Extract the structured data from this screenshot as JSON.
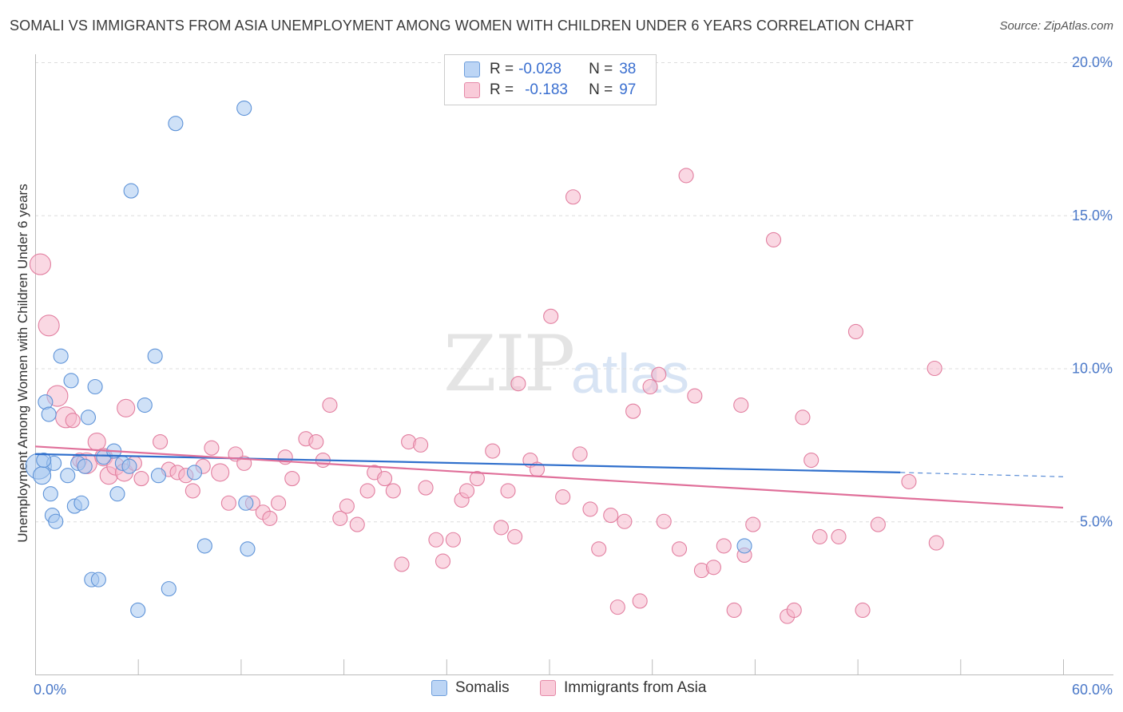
{
  "title": "SOMALI VS IMMIGRANTS FROM ASIA UNEMPLOYMENT AMONG WOMEN WITH CHILDREN UNDER 6 YEARS CORRELATION CHART",
  "source": "Source: ZipAtlas.com",
  "watermark": {
    "left": "ZIP",
    "right": "atlas"
  },
  "legend": {
    "rows": [
      {
        "r_label": "R =",
        "r_value": "-0.028",
        "n_label": "N =",
        "n_value": "38",
        "color": "#a8c8f0"
      },
      {
        "r_label": "R =",
        "r_value": "-0.183",
        "n_label": "N =",
        "n_value": "97",
        "color": "#f6b8cc"
      }
    ]
  },
  "bottom_legend": [
    "Somalis",
    "Immigrants from Asia"
  ],
  "colors": {
    "somali_fill": "#a8c8f0",
    "somali_stroke": "#5e93d8",
    "somali_line": "#2f6fcc",
    "asia_fill": "#f6b8cc",
    "asia_stroke": "#e27fa0",
    "asia_line": "#e0709a",
    "grid": "#dddddd",
    "tick_text": "#4a78c8"
  },
  "chart_data": {
    "type": "scatter",
    "title": "SOMALI VS IMMIGRANTS FROM ASIA UNEMPLOYMENT AMONG WOMEN WITH CHILDREN UNDER 6 YEARS CORRELATION CHART",
    "xlabel": "",
    "ylabel": "Unemployment Among Women with Children Under 6 years",
    "xlim": [
      0,
      60
    ],
    "ylim": [
      0,
      20
    ],
    "x_tick_labels": [
      "0.0%",
      "60.0%"
    ],
    "y_ticks": [
      5,
      10,
      15,
      20
    ],
    "y_tick_labels": [
      "5.0%",
      "10.0%",
      "15.0%",
      "20.0%"
    ],
    "grid": "horizontal dashed",
    "legend_position": "top-center",
    "series": [
      {
        "name": "Somalis",
        "r": -0.028,
        "n": 38,
        "trend": {
          "x": [
            0,
            50.5
          ],
          "y": [
            7.2,
            6.6
          ],
          "extended_to": [
            60,
            6.46
          ]
        },
        "points": [
          [
            0.2,
            6.8,
            16
          ],
          [
            0.4,
            6.5,
            11
          ],
          [
            0.6,
            8.9,
            9
          ],
          [
            0.8,
            8.5,
            9
          ],
          [
            0.9,
            5.9,
            9
          ],
          [
            1.0,
            5.2,
            9
          ],
          [
            1.1,
            6.9,
            9
          ],
          [
            1.2,
            5.0,
            9
          ],
          [
            1.5,
            10.4,
            9
          ],
          [
            1.9,
            6.5,
            9
          ],
          [
            2.1,
            9.6,
            9
          ],
          [
            2.3,
            5.5,
            9
          ],
          [
            2.5,
            6.9,
            9
          ],
          [
            2.7,
            5.6,
            9
          ],
          [
            2.9,
            6.8,
            9
          ],
          [
            3.1,
            8.4,
            9
          ],
          [
            3.5,
            9.4,
            9
          ],
          [
            3.3,
            3.1,
            9
          ],
          [
            3.7,
            3.1,
            9
          ],
          [
            4.0,
            7.1,
            9
          ],
          [
            4.6,
            7.3,
            9
          ],
          [
            4.8,
            5.9,
            9
          ],
          [
            5.1,
            6.9,
            9
          ],
          [
            5.5,
            6.8,
            9
          ],
          [
            5.6,
            15.8,
            9
          ],
          [
            6.0,
            2.1,
            9
          ],
          [
            6.4,
            8.8,
            9
          ],
          [
            7.0,
            10.4,
            9
          ],
          [
            7.2,
            6.5,
            9
          ],
          [
            7.8,
            2.8,
            9
          ],
          [
            8.2,
            18.0,
            9
          ],
          [
            9.3,
            6.6,
            9
          ],
          [
            9.9,
            4.2,
            9
          ],
          [
            12.2,
            18.5,
            9
          ],
          [
            12.3,
            5.6,
            9
          ],
          [
            12.4,
            4.1,
            9
          ],
          [
            41.4,
            4.2,
            9
          ],
          [
            0.5,
            7.0,
            9
          ]
        ]
      },
      {
        "name": "Immigrants from Asia",
        "r": -0.183,
        "n": 97,
        "trend": {
          "x": [
            0,
            60
          ],
          "y": [
            7.45,
            5.45
          ]
        },
        "points": [
          [
            0.3,
            13.4,
            13
          ],
          [
            0.8,
            11.4,
            13
          ],
          [
            1.3,
            9.1,
            13
          ],
          [
            1.8,
            8.4,
            13
          ],
          [
            2.2,
            8.3,
            9
          ],
          [
            2.6,
            7.0,
            9
          ],
          [
            3.0,
            6.9,
            13
          ],
          [
            3.6,
            7.6,
            11
          ],
          [
            4.0,
            7.1,
            11
          ],
          [
            4.3,
            6.5,
            11
          ],
          [
            4.7,
            6.8,
            11
          ],
          [
            5.2,
            6.6,
            11
          ],
          [
            5.3,
            8.7,
            11
          ],
          [
            5.8,
            6.9,
            9
          ],
          [
            6.2,
            6.4,
            9
          ],
          [
            7.3,
            7.6,
            9
          ],
          [
            7.8,
            6.7,
            9
          ],
          [
            8.3,
            6.6,
            9
          ],
          [
            8.8,
            6.5,
            9
          ],
          [
            9.2,
            6.0,
            9
          ],
          [
            9.8,
            6.8,
            9
          ],
          [
            10.3,
            7.4,
            9
          ],
          [
            10.8,
            6.6,
            11
          ],
          [
            11.3,
            5.6,
            9
          ],
          [
            11.7,
            7.2,
            9
          ],
          [
            12.2,
            6.9,
            9
          ],
          [
            12.7,
            5.6,
            9
          ],
          [
            13.3,
            5.3,
            9
          ],
          [
            13.7,
            5.1,
            9
          ],
          [
            14.2,
            5.6,
            9
          ],
          [
            14.6,
            7.1,
            9
          ],
          [
            15.0,
            6.4,
            9
          ],
          [
            15.8,
            7.7,
            9
          ],
          [
            16.4,
            7.6,
            9
          ],
          [
            16.8,
            7.0,
            9
          ],
          [
            17.2,
            8.8,
            9
          ],
          [
            17.8,
            5.1,
            9
          ],
          [
            18.2,
            5.5,
            9
          ],
          [
            18.8,
            4.9,
            9
          ],
          [
            19.4,
            6.0,
            9
          ],
          [
            19.8,
            6.6,
            9
          ],
          [
            20.4,
            6.4,
            9
          ],
          [
            20.9,
            6.0,
            9
          ],
          [
            21.4,
            3.6,
            9
          ],
          [
            21.8,
            7.6,
            9
          ],
          [
            22.5,
            7.5,
            9
          ],
          [
            22.8,
            6.1,
            9
          ],
          [
            23.4,
            4.4,
            9
          ],
          [
            23.8,
            3.7,
            9
          ],
          [
            24.4,
            4.4,
            9
          ],
          [
            24.9,
            5.7,
            9
          ],
          [
            25.2,
            6.0,
            9
          ],
          [
            25.8,
            6.4,
            9
          ],
          [
            26.7,
            7.3,
            9
          ],
          [
            27.2,
            4.8,
            9
          ],
          [
            27.6,
            6.0,
            9
          ],
          [
            28.0,
            4.5,
            9
          ],
          [
            28.2,
            9.5,
            9
          ],
          [
            28.9,
            7.0,
            9
          ],
          [
            29.3,
            6.7,
            9
          ],
          [
            30.1,
            11.7,
            9
          ],
          [
            30.8,
            5.8,
            9
          ],
          [
            31.4,
            15.6,
            9
          ],
          [
            31.8,
            7.2,
            9
          ],
          [
            32.4,
            5.4,
            9
          ],
          [
            32.9,
            4.1,
            9
          ],
          [
            33.6,
            5.2,
            9
          ],
          [
            34.0,
            2.2,
            9
          ],
          [
            34.4,
            5.0,
            9
          ],
          [
            34.9,
            8.6,
            9
          ],
          [
            35.3,
            2.4,
            9
          ],
          [
            35.9,
            9.4,
            9
          ],
          [
            36.4,
            9.8,
            9
          ],
          [
            36.7,
            5.0,
            9
          ],
          [
            37.6,
            4.1,
            9
          ],
          [
            38.0,
            16.3,
            9
          ],
          [
            38.5,
            9.1,
            9
          ],
          [
            38.9,
            3.4,
            9
          ],
          [
            39.6,
            3.5,
            9
          ],
          [
            40.2,
            4.2,
            9
          ],
          [
            40.8,
            2.1,
            9
          ],
          [
            41.2,
            8.8,
            9
          ],
          [
            41.9,
            4.9,
            9
          ],
          [
            43.1,
            14.2,
            9
          ],
          [
            43.9,
            1.9,
            9
          ],
          [
            44.3,
            2.1,
            9
          ],
          [
            44.8,
            8.4,
            9
          ],
          [
            45.3,
            7.0,
            9
          ],
          [
            45.8,
            4.5,
            9
          ],
          [
            46.9,
            4.5,
            9
          ],
          [
            47.9,
            11.2,
            9
          ],
          [
            48.3,
            2.1,
            9
          ],
          [
            49.2,
            4.9,
            9
          ],
          [
            51.0,
            6.3,
            9
          ],
          [
            52.5,
            10.0,
            9
          ],
          [
            52.6,
            4.3,
            9
          ],
          [
            41.4,
            3.9,
            9
          ]
        ]
      }
    ]
  }
}
